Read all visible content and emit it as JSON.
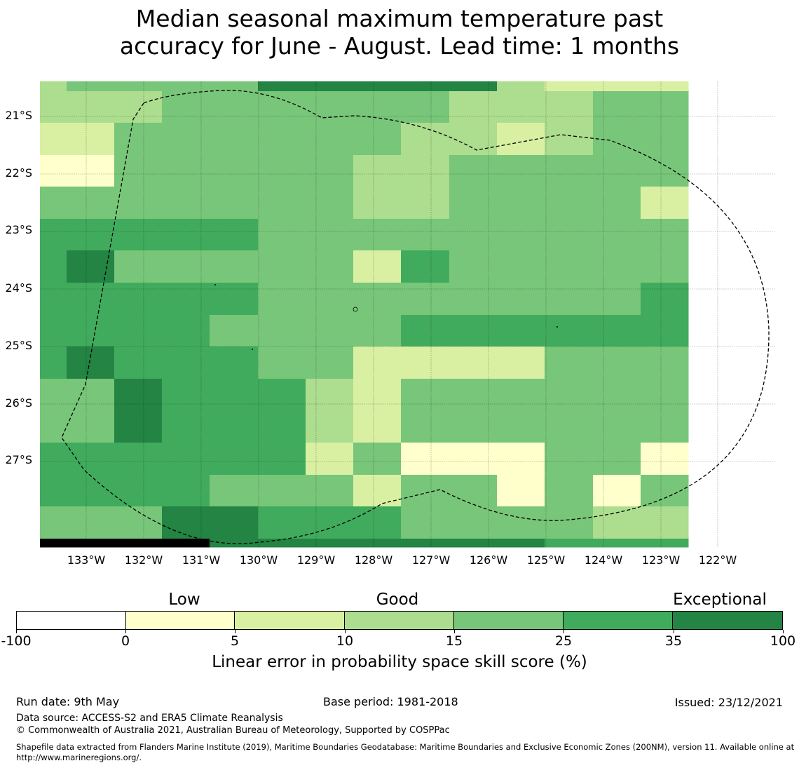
{
  "title": {
    "line1": "Median seasonal maximum temperature past",
    "line2": "accuracy for June - August. Lead time: 1 months"
  },
  "map": {
    "lat_labels": [
      "21°S",
      "22°S",
      "23°S",
      "24°S",
      "25°S",
      "26°S",
      "27°S"
    ],
    "lon_labels": [
      "133°W",
      "132°W",
      "131°W",
      "130°W",
      "129°W",
      "128°W",
      "127°W",
      "126°W",
      "125°W",
      "124°W",
      "123°W",
      "122°W"
    ],
    "grid": [
      "34444666663222",
      "33344444433344",
      "22444444332344",
      "11444443344444",
      "44444443344442",
      "55555444444444",
      "56444442544444",
      "55555444444445",
      "55554444555555",
      "56555442222444",
      "44655532444444",
      "44655532444444",
      "55555524111441",
      "55554442441414",
      "44466555444433",
      "77776666666555",
      "56444444444444"
    ]
  },
  "legend": {
    "category_labels": [
      "Low",
      "Good",
      "Exceptional"
    ],
    "ticks": [
      "-100",
      "0",
      "5",
      "10",
      "15",
      "25",
      "35",
      "100"
    ],
    "label": "Linear error in probability space skill score (%)",
    "colors": [
      "#ffffff",
      "#ffffcc",
      "#d9f0a3",
      "#addd8e",
      "#78c679",
      "#41ab5d",
      "#238443"
    ]
  },
  "chart_data": {
    "type": "heatmap",
    "title": "Median seasonal maximum temperature past accuracy for June - August. Lead time: 1 months",
    "colorbar_label": "Linear error in probability space skill score (%)",
    "bins": [
      [
        -100,
        0
      ],
      [
        0,
        5
      ],
      [
        5,
        10
      ],
      [
        10,
        15
      ],
      [
        15,
        25
      ],
      [
        25,
        35
      ],
      [
        35,
        100
      ]
    ],
    "bin_categories": {
      "Low": [
        0,
        5
      ],
      "Good": [
        10,
        15
      ],
      "Exceptional": [
        35,
        100
      ]
    }
  },
  "footer": {
    "run_date": "Run date: 9th May",
    "base_period": "Base period: 1981-2018",
    "issued": "Issued: 23/12/2021",
    "data_source": "Data source: ACCESS-S2 and ERA5 Climate Reanalysis",
    "copyright": "© Commonwealth of Australia 2021, Australian Bureau of Meteorology, Supported by COSPPac",
    "shapefile": "Shapefile data extracted from Flanders Marine Institute (2019), Maritime Boundaries Geodatabase: Maritime Boundaries and Exclusive Economic Zones (200NM), version 11. Available online at http://www.marineregions.org/."
  }
}
